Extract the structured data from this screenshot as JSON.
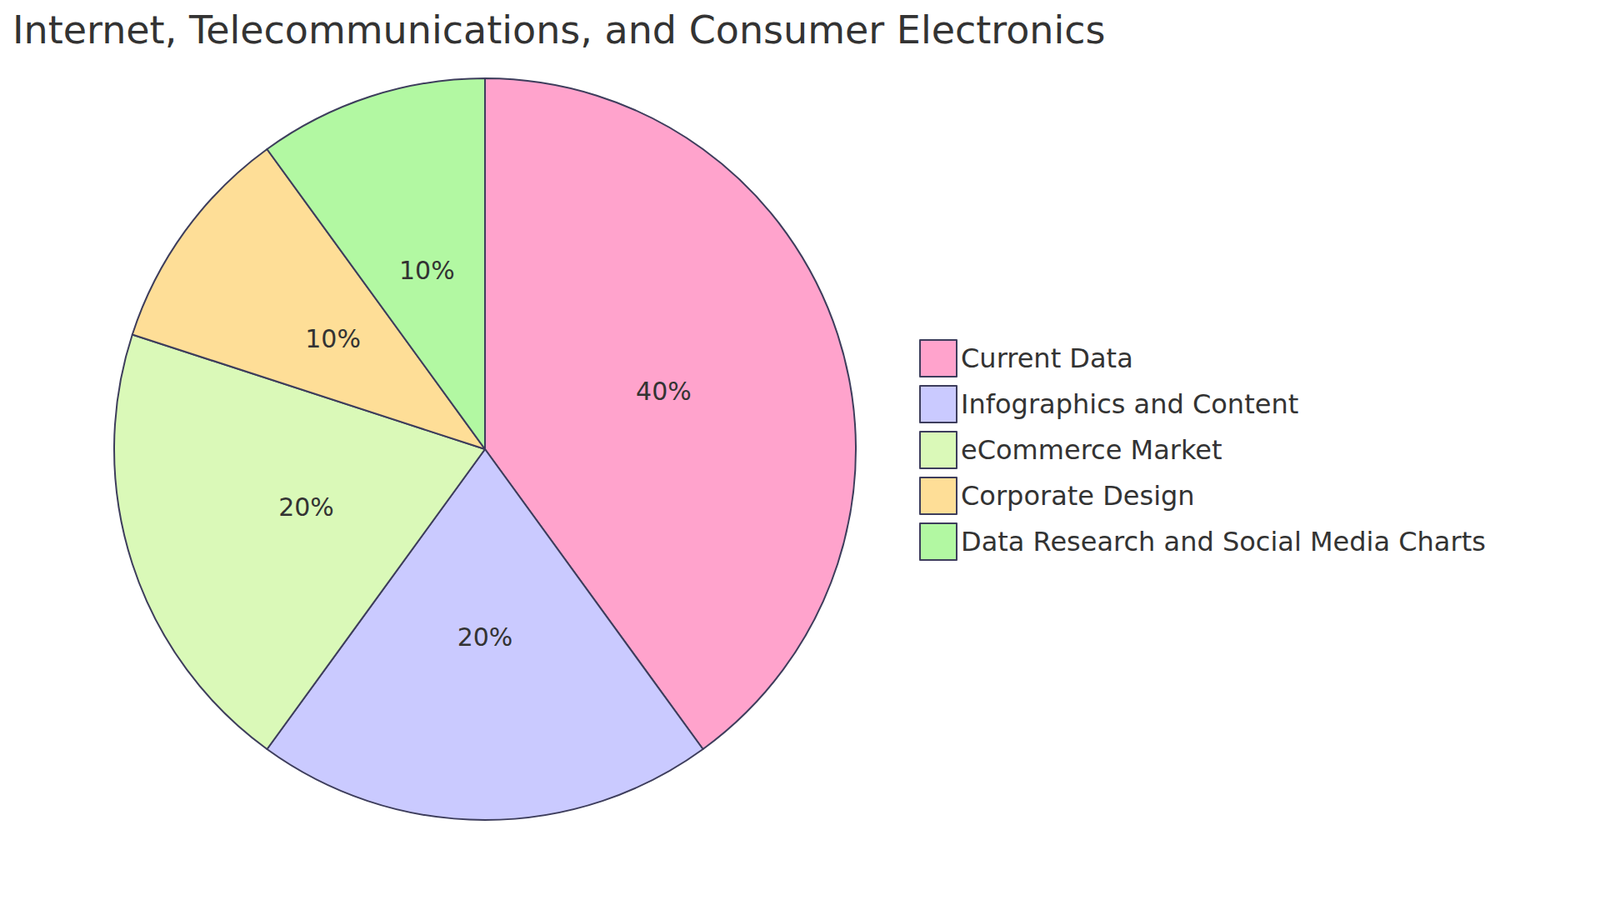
{
  "chart_data": {
    "type": "pie",
    "title": "Internet, Telecommunications, and Consumer Electronics",
    "categories": [
      "Current Data",
      "Infographics and Content",
      "eCommerce Market",
      "Corporate Design",
      "Data Research and Social Media Charts"
    ],
    "values": [
      40,
      20,
      20,
      10,
      10
    ],
    "value_labels": [
      "40%",
      "20%",
      "20%",
      "10%",
      "10%"
    ],
    "colors": [
      "#FFA3CC",
      "#CACAFF",
      "#DAF9B8",
      "#FEDE97",
      "#B2F8A2"
    ],
    "data_labels": true,
    "legend": "right"
  }
}
